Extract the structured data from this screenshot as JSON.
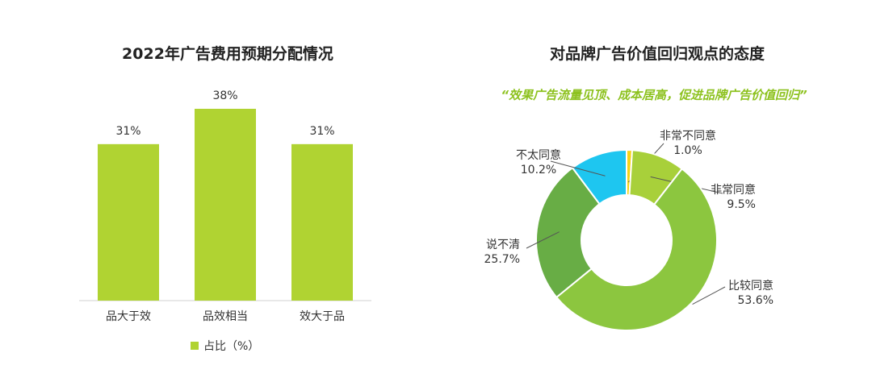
{
  "chart_data": [
    {
      "type": "bar",
      "title": "2022年广告费用预期分配情况",
      "categories": [
        "品大于效",
        "品效相当",
        "效大于品"
      ],
      "series": [
        {
          "name": "占比（%）",
          "values": [
            31,
            38,
            31
          ]
        }
      ],
      "data_labels": [
        "31%",
        "38%",
        "31%"
      ],
      "ylim": [
        0,
        38
      ],
      "grid": false,
      "legend": "bottom-center",
      "color": "#b0d332"
    },
    {
      "type": "pie",
      "subtype": "donut",
      "title": "对品牌广告价值回归观点的态度",
      "subtitle": "“效果广告流量见顶、成本居高，促进品牌广告价值回归”",
      "subtitle_color": "#8dc21f",
      "slices": [
        {
          "label": "非常不同意",
          "value": 1.0,
          "value_label": "1.0%",
          "color": "#f5d317"
        },
        {
          "label": "非常同意",
          "value": 9.5,
          "value_label": "9.5%",
          "color": "#a8d03a"
        },
        {
          "label": "比较同意",
          "value": 53.6,
          "value_label": "53.6%",
          "color": "#8cc63f"
        },
        {
          "label": "说不清",
          "value": 25.7,
          "value_label": "25.7%",
          "color": "#68ad45"
        },
        {
          "label": "不太同意",
          "value": 10.2,
          "value_label": "10.2%",
          "color": "#1ec6f0"
        }
      ]
    }
  ]
}
